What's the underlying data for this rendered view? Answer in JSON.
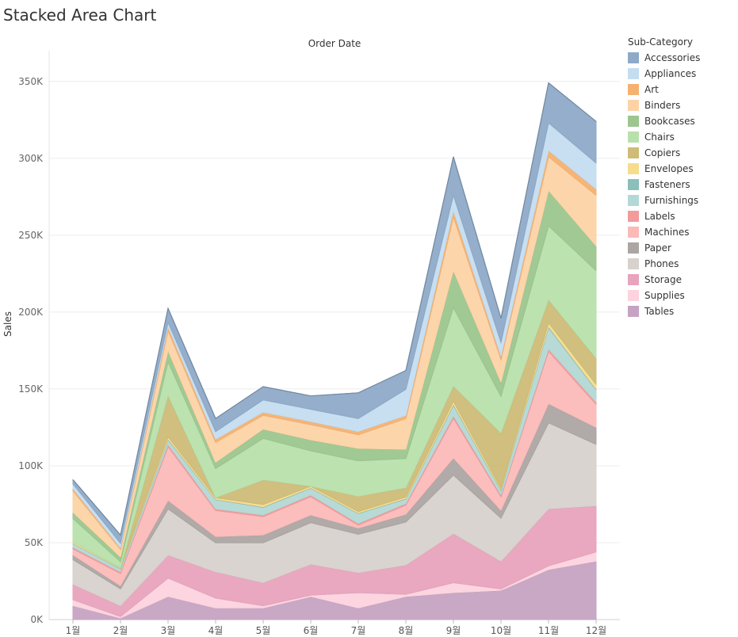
{
  "title": "Stacked Area Chart",
  "chart_data": {
    "type": "area",
    "stacked": true,
    "title": "Stacked Area Chart",
    "column_header": "Order Date",
    "xlabel": "",
    "ylabel": "Sales",
    "ylim": [
      0,
      370000
    ],
    "yticks": [
      0,
      50000,
      100000,
      150000,
      200000,
      250000,
      300000,
      350000
    ],
    "ytick_labels": [
      "0K",
      "50K",
      "100K",
      "150K",
      "200K",
      "250K",
      "300K",
      "350K"
    ],
    "categories": [
      "1월",
      "2월",
      "3월",
      "4월",
      "5월",
      "6월",
      "7월",
      "8월",
      "9월",
      "10월",
      "11월",
      "12월"
    ],
    "legend_title": "Sub-Category",
    "series": [
      {
        "name": "Tables",
        "color": "#c6a3c2",
        "values": [
          9000,
          1000,
          15000,
          7500,
          7500,
          15000,
          7500,
          15000,
          17500,
          19000,
          32500,
          38000
        ]
      },
      {
        "name": "Supplies",
        "color": "#fcd3de",
        "values": [
          4000,
          1000,
          12000,
          6500,
          1500,
          1000,
          10000,
          1500,
          6500,
          1000,
          2500,
          6000
        ]
      },
      {
        "name": "Storage",
        "color": "#e8a3bd",
        "values": [
          10000,
          7000,
          15000,
          17000,
          15000,
          20000,
          13000,
          19000,
          32000,
          18000,
          37000,
          30000
        ]
      },
      {
        "name": "Phones",
        "color": "#d7d2ce",
        "values": [
          16000,
          11000,
          30000,
          19000,
          26000,
          27000,
          25000,
          28000,
          38000,
          28000,
          56000,
          40000
        ]
      },
      {
        "name": "Paper",
        "color": "#aca5a3",
        "values": [
          3000,
          2000,
          5500,
          4000,
          5000,
          5000,
          4000,
          5000,
          11000,
          5000,
          12500,
          11000
        ]
      },
      {
        "name": "Machines",
        "color": "#fbbab8",
        "values": [
          4000,
          8000,
          35000,
          17000,
          12000,
          12000,
          2000,
          6000,
          26000,
          9000,
          34000,
          15000
        ]
      },
      {
        "name": "Labels",
        "color": "#f29b9c",
        "values": [
          1000,
          1000,
          1500,
          1000,
          1000,
          1000,
          1000,
          1000,
          1500,
          1000,
          1500,
          1500
        ]
      },
      {
        "name": "Furnishings",
        "color": "#b4d8d5",
        "values": [
          2500,
          2000,
          3000,
          6000,
          5000,
          4500,
          6500,
          3000,
          7000,
          3000,
          14000,
          8000
        ]
      },
      {
        "name": "Fasteners",
        "color": "#8ac0b9",
        "values": [
          300,
          200,
          400,
          300,
          400,
          300,
          300,
          300,
          500,
          300,
          600,
          500
        ]
      },
      {
        "name": "Envelopes",
        "color": "#f6dd8c",
        "values": [
          1000,
          500,
          1500,
          1000,
          1500,
          1000,
          1000,
          1000,
          2000,
          1000,
          2500,
          3000
        ]
      },
      {
        "name": "Copiers",
        "color": "#cebc77",
        "values": [
          0,
          0,
          27000,
          0,
          16000,
          0,
          10000,
          6000,
          10000,
          36000,
          15000,
          17000
        ]
      },
      {
        "name": "Chairs",
        "color": "#b8e0ac",
        "values": [
          15000,
          4000,
          22000,
          19000,
          27000,
          23000,
          23000,
          19000,
          51000,
          24000,
          48000,
          57000
        ]
      },
      {
        "name": "Bookcases",
        "color": "#9cc68e",
        "values": [
          4000,
          3000,
          7000,
          4000,
          6000,
          7000,
          8000,
          6000,
          24000,
          9000,
          23000,
          16000
        ]
      },
      {
        "name": "Binders",
        "color": "#fdd3a6",
        "values": [
          14000,
          5000,
          13000,
          13000,
          9000,
          10000,
          9000,
          20000,
          35000,
          15000,
          22000,
          33000
        ]
      },
      {
        "name": "Art",
        "color": "#f5b170",
        "values": [
          1500,
          1000,
          2500,
          2000,
          2000,
          2000,
          2000,
          2000,
          4000,
          2000,
          4000,
          4000
        ]
      },
      {
        "name": "Appliances",
        "color": "#c4ddf0",
        "values": [
          3000,
          3000,
          3000,
          5000,
          8000,
          8000,
          8500,
          17000,
          10000,
          9000,
          18000,
          17000
        ]
      },
      {
        "name": "Accessories",
        "color": "#8eaac8",
        "values": [
          2700,
          5300,
          9000,
          8500,
          8600,
          8700,
          16700,
          12200,
          25000,
          15700,
          26000,
          27000
        ]
      }
    ],
    "legend_order": [
      "Accessories",
      "Appliances",
      "Art",
      "Binders",
      "Bookcases",
      "Chairs",
      "Copiers",
      "Envelopes",
      "Fasteners",
      "Furnishings",
      "Labels",
      "Machines",
      "Paper",
      "Phones",
      "Storage",
      "Supplies",
      "Tables"
    ],
    "grid": true,
    "legend_position": "right"
  }
}
